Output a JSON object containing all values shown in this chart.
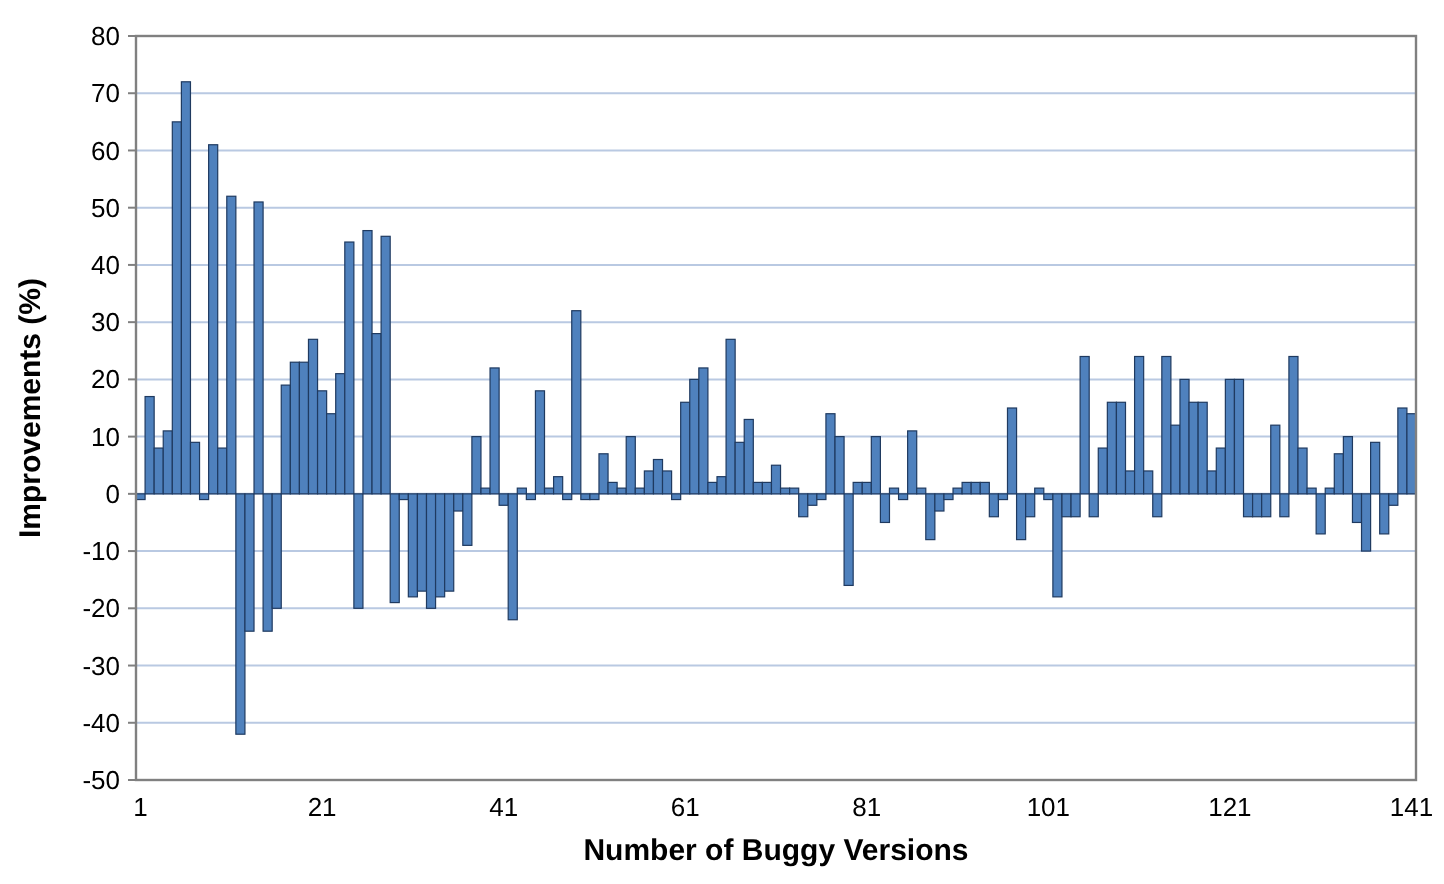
{
  "chart_data": {
    "type": "bar",
    "xlabel": "Number of Buggy Versions",
    "ylabel": "Improvements (%)",
    "categories": [
      "1",
      null,
      null,
      null,
      null,
      null,
      null,
      null,
      null,
      null,
      null,
      null,
      null,
      null,
      null,
      null,
      null,
      null,
      null,
      null,
      "21",
      null,
      null,
      null,
      null,
      null,
      null,
      null,
      null,
      null,
      null,
      null,
      null,
      null,
      null,
      null,
      null,
      null,
      null,
      null,
      "41",
      null,
      null,
      null,
      null,
      null,
      null,
      null,
      null,
      null,
      null,
      null,
      null,
      null,
      null,
      null,
      null,
      null,
      null,
      null,
      "61",
      null,
      null,
      null,
      null,
      null,
      null,
      null,
      null,
      null,
      null,
      null,
      null,
      null,
      null,
      null,
      null,
      null,
      null,
      null,
      "81",
      null,
      null,
      null,
      null,
      null,
      null,
      null,
      null,
      null,
      null,
      null,
      null,
      null,
      null,
      null,
      null,
      null,
      null,
      null,
      "101",
      null,
      null,
      null,
      null,
      null,
      null,
      null,
      null,
      null,
      null,
      null,
      null,
      null,
      null,
      null,
      null,
      null,
      null,
      null,
      "121",
      null,
      null,
      null,
      null,
      null,
      null,
      null,
      null,
      null,
      null,
      null,
      null,
      null,
      null,
      null,
      null,
      null,
      null,
      null,
      "141"
    ],
    "values": [
      -1,
      17,
      8,
      11,
      65,
      72,
      9,
      -1,
      61,
      8,
      52,
      -42,
      -24,
      51,
      -24,
      -20,
      19,
      23,
      23,
      27,
      18,
      14,
      21,
      44,
      -20,
      46,
      28,
      45,
      -19,
      -1,
      -18,
      -17,
      -20,
      -18,
      -17,
      -3,
      -9,
      10,
      1,
      22,
      -2,
      -22,
      1,
      -1,
      18,
      1,
      3,
      -1,
      32,
      -1,
      -1,
      7,
      2,
      1,
      10,
      1,
      4,
      6,
      4,
      -1,
      16,
      20,
      22,
      2,
      3,
      27,
      9,
      13,
      2,
      2,
      5,
      1,
      1,
      -4,
      -2,
      -1,
      14,
      10,
      -16,
      2,
      2,
      10,
      -5,
      1,
      -1,
      11,
      1,
      -8,
      -3,
      -1,
      1,
      2,
      2,
      2,
      -4,
      -1,
      15,
      -8,
      -4,
      1,
      -1,
      -18,
      -4,
      -4,
      24,
      -4,
      8,
      16,
      16,
      4,
      24,
      4,
      -4,
      24,
      12,
      20,
      16,
      16,
      4,
      8,
      20,
      20,
      -4,
      -4,
      -4,
      12,
      -4,
      24,
      8,
      1,
      -7,
      1,
      7,
      10,
      -5,
      -10,
      9,
      -7,
      -2,
      15,
      14
    ],
    "color": "#4f81bd",
    "ylim": [
      -50,
      80
    ],
    "yticks": [
      -50,
      -40,
      -30,
      -20,
      -10,
      0,
      10,
      20,
      30,
      40,
      50,
      60,
      70,
      80
    ],
    "grid": "y"
  }
}
